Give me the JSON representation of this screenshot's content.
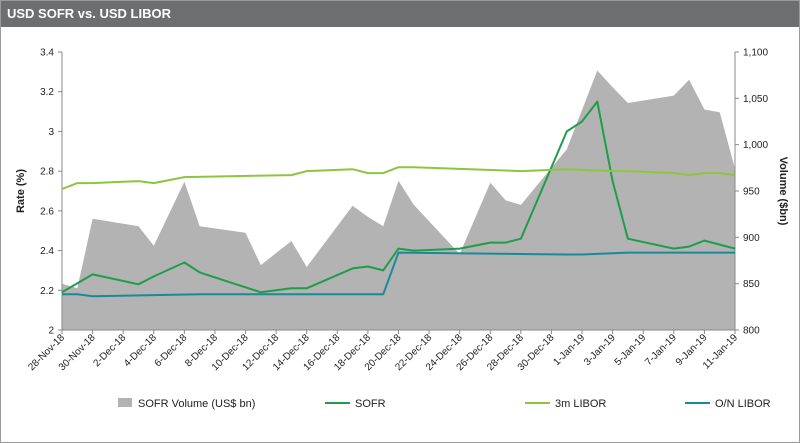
{
  "header": {
    "title": "USD SOFR vs. USD LIBOR"
  },
  "chart_data": {
    "type": "line",
    "title": "USD SOFR vs. USD LIBOR",
    "x_tick_labels": [
      "28-Nov-18",
      "30-Nov-18",
      "2-Dec-18",
      "4-Dec-18",
      "6-Dec-18",
      "8-Dec-18",
      "10-Dec-18",
      "12-Dec-18",
      "14-Dec-18",
      "16-Dec-18",
      "18-Dec-18",
      "20-Dec-18",
      "22-Dec-18",
      "24-Dec-18",
      "26-Dec-18",
      "28-Dec-18",
      "30-Dec-18",
      "1-Jan-19",
      "3-Jan-19",
      "5-Jan-19",
      "7-Jan-19",
      "9-Jan-19",
      "11-Jan-19"
    ],
    "x_start": "28-Nov-18",
    "y_left": {
      "label": "Rate (%)",
      "min": 2,
      "max": 3.4,
      "ticks": [
        "2",
        "2.2",
        "2.4",
        "2.6",
        "2.8",
        "3",
        "3.2",
        "3.4"
      ]
    },
    "y_right": {
      "label": "Volume ($bn)",
      "min": 800,
      "max": 1100,
      "ticks": [
        "800",
        "850",
        "900",
        "950",
        "1,000",
        "1,050",
        "1,100"
      ]
    },
    "grid": false,
    "legend_position": "bottom",
    "series": [
      {
        "name": "SOFR Volume (US$ bn)",
        "kind": "area",
        "axis": "right",
        "color": "#b3b3b4",
        "points": [
          [
            "28-Nov-18",
            850
          ],
          [
            "29-Nov-18",
            845
          ],
          [
            "30-Nov-18",
            920
          ],
          [
            "3-Dec-18",
            912
          ],
          [
            "4-Dec-18",
            891
          ],
          [
            "6-Dec-18",
            960
          ],
          [
            "7-Dec-18",
            912
          ],
          [
            "10-Dec-18",
            905
          ],
          [
            "11-Dec-18",
            870
          ],
          [
            "13-Dec-18",
            896
          ],
          [
            "14-Dec-18",
            868
          ],
          [
            "17-Dec-18",
            934
          ],
          [
            "18-Dec-18",
            922
          ],
          [
            "19-Dec-18",
            912
          ],
          [
            "20-Dec-18",
            961
          ],
          [
            "21-Dec-18",
            935
          ],
          [
            "24-Dec-18",
            882
          ],
          [
            "26-Dec-18",
            959
          ],
          [
            "27-Dec-18",
            940
          ],
          [
            "28-Dec-18",
            935
          ],
          [
            "31-Dec-18",
            995
          ],
          [
            "2-Jan-19",
            1080
          ],
          [
            "3-Jan-19",
            1062
          ],
          [
            "4-Jan-19",
            1045
          ],
          [
            "7-Jan-19",
            1053
          ],
          [
            "8-Jan-19",
            1070
          ],
          [
            "9-Jan-19",
            1038
          ],
          [
            "10-Jan-19",
            1035
          ],
          [
            "11-Jan-19",
            974
          ]
        ]
      },
      {
        "name": "SOFR",
        "kind": "line",
        "axis": "left",
        "color": "#1e9e4a",
        "points": [
          [
            "28-Nov-18",
            2.19
          ],
          [
            "30-Nov-18",
            2.28
          ],
          [
            "3-Dec-18",
            2.23
          ],
          [
            "4-Dec-18",
            2.27
          ],
          [
            "6-Dec-18",
            2.34
          ],
          [
            "7-Dec-18",
            2.29
          ],
          [
            "11-Dec-18",
            2.19
          ],
          [
            "13-Dec-18",
            2.21
          ],
          [
            "14-Dec-18",
            2.21
          ],
          [
            "17-Dec-18",
            2.31
          ],
          [
            "18-Dec-18",
            2.32
          ],
          [
            "19-Dec-18",
            2.3
          ],
          [
            "20-Dec-18",
            2.41
          ],
          [
            "21-Dec-18",
            2.4
          ],
          [
            "24-Dec-18",
            2.41
          ],
          [
            "26-Dec-18",
            2.44
          ],
          [
            "27-Dec-18",
            2.44
          ],
          [
            "28-Dec-18",
            2.46
          ],
          [
            "31-Dec-18",
            3.0
          ],
          [
            "1-Jan-19",
            3.05
          ],
          [
            "2-Jan-19",
            3.15
          ],
          [
            "3-Jan-19",
            2.75
          ],
          [
            "4-Jan-19",
            2.46
          ],
          [
            "7-Jan-19",
            2.41
          ],
          [
            "8-Jan-19",
            2.42
          ],
          [
            "9-Jan-19",
            2.45
          ],
          [
            "10-Jan-19",
            2.43
          ],
          [
            "11-Jan-19",
            2.41
          ]
        ]
      },
      {
        "name": "3m LIBOR",
        "kind": "line",
        "axis": "left",
        "color": "#8cc63f",
        "points": [
          [
            "28-Nov-18",
            2.71
          ],
          [
            "29-Nov-18",
            2.74
          ],
          [
            "30-Nov-18",
            2.74
          ],
          [
            "3-Dec-18",
            2.75
          ],
          [
            "4-Dec-18",
            2.74
          ],
          [
            "6-Dec-18",
            2.77
          ],
          [
            "13-Dec-18",
            2.78
          ],
          [
            "14-Dec-18",
            2.8
          ],
          [
            "17-Dec-18",
            2.81
          ],
          [
            "18-Dec-18",
            2.79
          ],
          [
            "19-Dec-18",
            2.79
          ],
          [
            "20-Dec-18",
            2.82
          ],
          [
            "21-Dec-18",
            2.82
          ],
          [
            "28-Dec-18",
            2.8
          ],
          [
            "31-Dec-18",
            2.81
          ],
          [
            "3-Jan-19",
            2.8
          ],
          [
            "4-Jan-19",
            2.8
          ],
          [
            "7-Jan-19",
            2.79
          ],
          [
            "8-Jan-19",
            2.78
          ],
          [
            "9-Jan-19",
            2.79
          ],
          [
            "10-Jan-19",
            2.79
          ],
          [
            "11-Jan-19",
            2.78
          ]
        ]
      },
      {
        "name": "O/N LIBOR",
        "kind": "line",
        "axis": "left",
        "color": "#1a8a9a",
        "points": [
          [
            "28-Nov-18",
            2.18
          ],
          [
            "29-Nov-18",
            2.18
          ],
          [
            "30-Nov-18",
            2.17
          ],
          [
            "7-Dec-18",
            2.18
          ],
          [
            "19-Dec-18",
            2.18
          ],
          [
            "20-Dec-18",
            2.39
          ],
          [
            "31-Dec-18",
            2.38
          ],
          [
            "1-Jan-19",
            2.38
          ],
          [
            "4-Jan-19",
            2.39
          ],
          [
            "11-Jan-19",
            2.39
          ]
        ]
      }
    ]
  }
}
